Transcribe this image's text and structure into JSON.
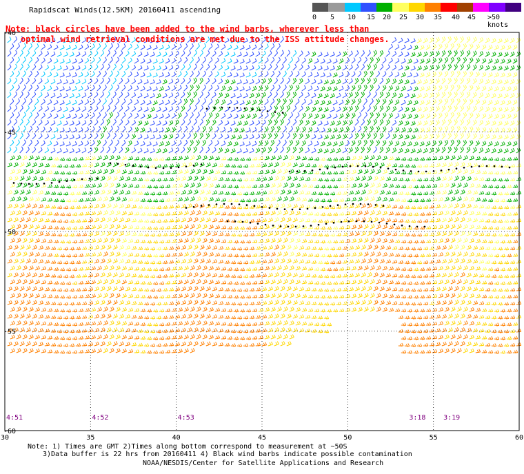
{
  "header": {
    "title": "Rapidscat Winds(12.5KM) 20160411 ascending"
  },
  "legend": {
    "labels": [
      "0",
      "5",
      "10",
      "15",
      "20",
      "25",
      "30",
      "35",
      "40",
      "45",
      ">50 knots"
    ],
    "colors": [
      "#555555",
      "#9a9a9a",
      "#00c8ff",
      "#3050ff",
      "#00b000",
      "#ffff60",
      "#ffd700",
      "#ff8000",
      "#ff0000",
      "#a04000",
      "#ff00ff",
      "#8000ff",
      "#400080"
    ]
  },
  "note": {
    "line1": "Note: black circles have been added to the wind barbs, wherever less than",
    "line2": "optimal wind retrieval conditions are met due to the ISS attitude changes."
  },
  "map": {
    "x_ticks": [
      "30",
      "35",
      "40",
      "45",
      "50",
      "55",
      "60"
    ],
    "y_ticks": [
      "-40",
      "-45",
      "-50",
      "-55",
      "-60"
    ],
    "times": [
      {
        "label": "4:51",
        "lon": 30
      },
      {
        "label": "4:52",
        "lon": 35
      },
      {
        "label": "4:53",
        "lon": 40
      },
      {
        "label": "3:18",
        "lon": 53.5
      },
      {
        "label": "3:19",
        "lon": 55.5
      }
    ],
    "time_color": "#800080",
    "grid": "dotted"
  },
  "footer": {
    "line1": "Note: 1) Times are GMT 2)Times along bottom correspond to measurement at ~50S",
    "line2": "3)Data buffer is 22 hrs from 20160411 4) Black wind barbs indicate possible contamination",
    "credit": "NOAA/NESDIS/Center for Satellite Applications and Research"
  }
}
